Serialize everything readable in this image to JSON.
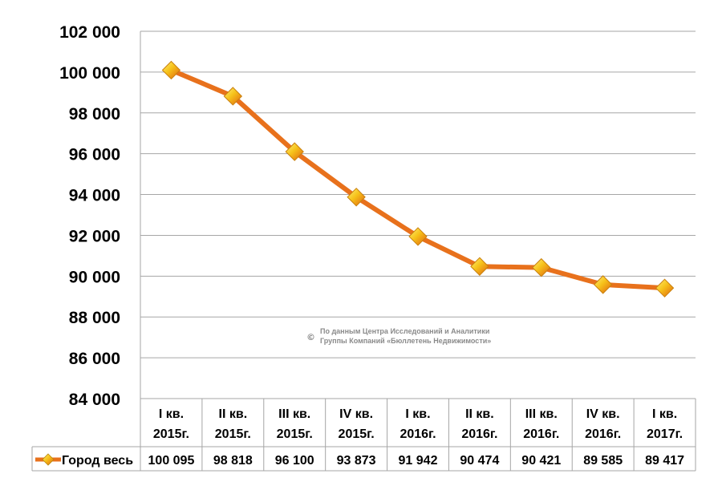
{
  "chart_data": {
    "type": "line",
    "title": "",
    "xlabel": "",
    "ylabel": "",
    "ylim": [
      84000,
      102000
    ],
    "yticks": [
      "102 000",
      "100 000",
      "98 000",
      "96 000",
      "94 000",
      "92 000",
      "90 000",
      "88 000",
      "86 000",
      "84 000"
    ],
    "ytick_values": [
      102000,
      100000,
      98000,
      96000,
      94000,
      92000,
      90000,
      88000,
      86000,
      84000
    ],
    "categories": [
      [
        "I кв.",
        "2015г."
      ],
      [
        "II кв.",
        "2015г."
      ],
      [
        "III кв.",
        "2015г."
      ],
      [
        "IV кв.",
        "2015г."
      ],
      [
        "I кв.",
        "2016г."
      ],
      [
        "II кв.",
        "2016г."
      ],
      [
        "III кв.",
        "2016г."
      ],
      [
        "IV кв.",
        "2016г."
      ],
      [
        "I кв.",
        "2017г."
      ]
    ],
    "series": [
      {
        "name": "Город весь",
        "values": [
          100095,
          98818,
          96100,
          93873,
          91942,
          90474,
          90421,
          89585,
          89417
        ],
        "labels": [
          "100 095",
          "98 818",
          "96 100",
          "93 873",
          "91 942",
          "90 474",
          "90 421",
          "89 585",
          "89 417"
        ],
        "color": "#e8711c",
        "marker": "diamond"
      }
    ],
    "grid": true,
    "legend": "data-table",
    "data_table": true,
    "annotation": {
      "symbol": "©",
      "lines": [
        "По данным Центра Исследований и Аналитики",
        "Группы Компаний «Бюллетень Недвижимости»"
      ]
    }
  }
}
